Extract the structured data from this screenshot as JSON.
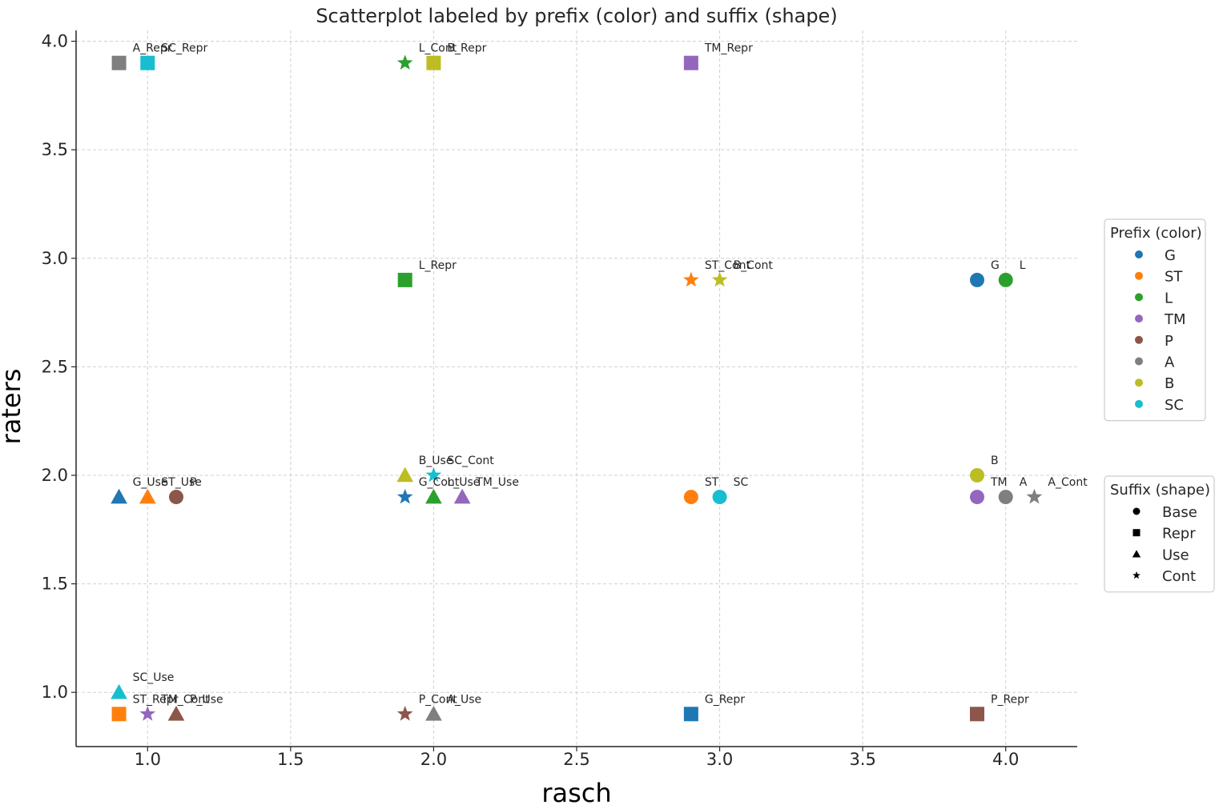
{
  "chart_data": {
    "type": "scatter",
    "title": "Scatterplot labeled by prefix (color) and suffix (shape)",
    "xlabel": "rasch",
    "ylabel": "raters",
    "xlim": [
      0.75,
      4.25
    ],
    "ylim": [
      0.75,
      4.05
    ],
    "xticks": [
      1.0,
      1.5,
      2.0,
      2.5,
      3.0,
      3.5,
      4.0
    ],
    "xtick_labels": [
      "1.0",
      "1.5",
      "2.0",
      "2.5",
      "3.0",
      "3.5",
      "4.0"
    ],
    "yticks": [
      1.0,
      1.5,
      2.0,
      2.5,
      3.0,
      3.5,
      4.0
    ],
    "ytick_labels": [
      "1.0",
      "1.5",
      "2.0",
      "2.5",
      "3.0",
      "3.5",
      "4.0"
    ],
    "grid": true,
    "grid_style": "dashed",
    "legend_placement": "right",
    "prefix_legend": {
      "title": "Prefix (color)",
      "items": [
        {
          "label": "G",
          "color": "#1f77b4"
        },
        {
          "label": "ST",
          "color": "#ff7f0e"
        },
        {
          "label": "L",
          "color": "#2ca02c"
        },
        {
          "label": "TM",
          "color": "#9467bd"
        },
        {
          "label": "P",
          "color": "#8c564b"
        },
        {
          "label": "A",
          "color": "#7f7f7f"
        },
        {
          "label": "B",
          "color": "#bcbd22"
        },
        {
          "label": "SC",
          "color": "#17becf"
        }
      ]
    },
    "suffix_legend": {
      "title": "Suffix (shape)",
      "items": [
        {
          "label": "Base",
          "shape": "circle"
        },
        {
          "label": "Repr",
          "shape": "square"
        },
        {
          "label": "Use",
          "shape": "triangle"
        },
        {
          "label": "Cont",
          "shape": "star"
        }
      ]
    },
    "points": [
      {
        "label": "G",
        "prefix": "G",
        "shape": "circle",
        "x": 3.9,
        "y": 2.9
      },
      {
        "label": "L",
        "prefix": "L",
        "shape": "circle",
        "x": 4.0,
        "y": 2.9
      },
      {
        "label": "B",
        "prefix": "B",
        "shape": "circle",
        "x": 3.9,
        "y": 2.0
      },
      {
        "label": "TM",
        "prefix": "TM",
        "shape": "circle",
        "x": 3.9,
        "y": 1.9
      },
      {
        "label": "A",
        "prefix": "A",
        "shape": "circle",
        "x": 4.0,
        "y": 1.9
      },
      {
        "label": "A_Cont",
        "prefix": "A",
        "shape": "star",
        "x": 4.1,
        "y": 1.9
      },
      {
        "label": "P_Repr",
        "prefix": "P",
        "shape": "square",
        "x": 3.9,
        "y": 0.9
      },
      {
        "label": "ST",
        "prefix": "ST",
        "shape": "circle",
        "x": 2.9,
        "y": 1.9
      },
      {
        "label": "SC",
        "prefix": "SC",
        "shape": "circle",
        "x": 3.0,
        "y": 1.9
      },
      {
        "label": "G_Repr",
        "prefix": "G",
        "shape": "square",
        "x": 2.9,
        "y": 0.9
      },
      {
        "label": "ST_Cont",
        "prefix": "ST",
        "shape": "star",
        "x": 2.9,
        "y": 2.9
      },
      {
        "label": "B_Cont",
        "prefix": "B",
        "shape": "star",
        "x": 3.0,
        "y": 2.9
      },
      {
        "label": "TM_Repr",
        "prefix": "TM",
        "shape": "square",
        "x": 2.9,
        "y": 3.9
      },
      {
        "label": "L_Cont",
        "prefix": "L",
        "shape": "star",
        "x": 1.9,
        "y": 3.9
      },
      {
        "label": "B_Repr",
        "prefix": "B",
        "shape": "square",
        "x": 2.0,
        "y": 3.9
      },
      {
        "label": "L_Repr",
        "prefix": "L",
        "shape": "square",
        "x": 1.9,
        "y": 2.9
      },
      {
        "label": "B_Use",
        "prefix": "B",
        "shape": "triangle",
        "x": 1.9,
        "y": 2.0
      },
      {
        "label": "SC_Cont",
        "prefix": "SC",
        "shape": "star",
        "x": 2.0,
        "y": 2.0
      },
      {
        "label": "G_Cont",
        "prefix": "G",
        "shape": "star",
        "x": 1.9,
        "y": 1.9
      },
      {
        "label": "L_Use",
        "prefix": "L",
        "shape": "triangle",
        "x": 2.0,
        "y": 1.9
      },
      {
        "label": "TM_Use",
        "prefix": "TM",
        "shape": "triangle",
        "x": 2.1,
        "y": 1.9
      },
      {
        "label": "P_Cont",
        "prefix": "P",
        "shape": "star",
        "x": 1.9,
        "y": 0.9
      },
      {
        "label": "A_Use",
        "prefix": "A",
        "shape": "triangle",
        "x": 2.0,
        "y": 0.9
      },
      {
        "label": "A_Repr",
        "prefix": "A",
        "shape": "square",
        "x": 0.9,
        "y": 3.9
      },
      {
        "label": "SC_Repr",
        "prefix": "SC",
        "shape": "square",
        "x": 1.0,
        "y": 3.9
      },
      {
        "label": "G_Use",
        "prefix": "G",
        "shape": "triangle",
        "x": 0.9,
        "y": 1.9
      },
      {
        "label": "ST_Use",
        "prefix": "ST",
        "shape": "triangle",
        "x": 1.0,
        "y": 1.9
      },
      {
        "label": "P",
        "prefix": "P",
        "shape": "circle",
        "x": 1.1,
        "y": 1.9
      },
      {
        "label": "SC_Use",
        "prefix": "SC",
        "shape": "triangle",
        "x": 0.9,
        "y": 1.0
      },
      {
        "label": "ST_Repr",
        "prefix": "ST",
        "shape": "square",
        "x": 0.9,
        "y": 0.9
      },
      {
        "label": "TM_Cont",
        "prefix": "TM",
        "shape": "star",
        "x": 1.0,
        "y": 0.9
      },
      {
        "label": "P_Use",
        "prefix": "P",
        "shape": "triangle",
        "x": 1.1,
        "y": 0.9
      }
    ]
  }
}
